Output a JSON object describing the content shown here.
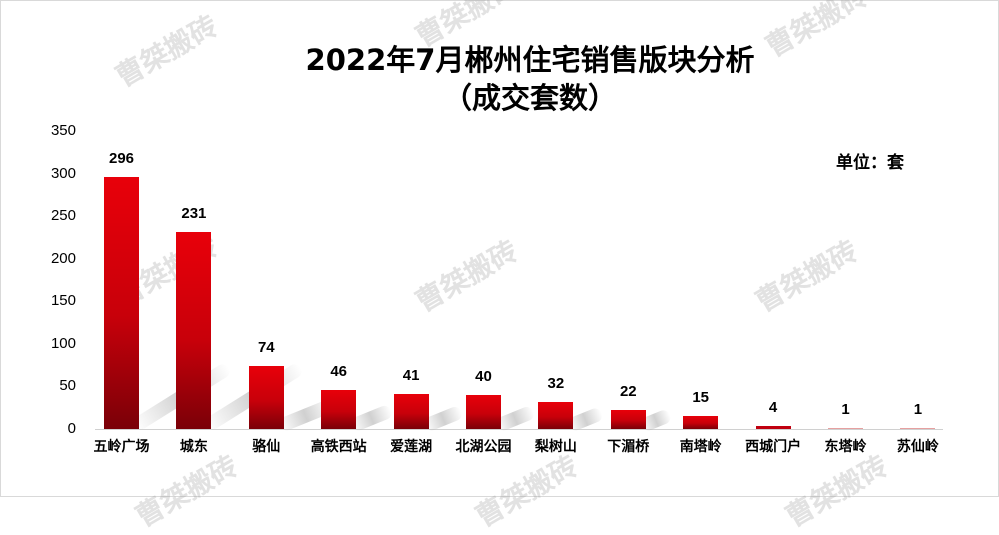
{
  "chart_data": {
    "type": "bar",
    "title": "2022年7月郴州住宅销售版块分析",
    "subtitle": "（成交套数）",
    "unit_label": "单位：套",
    "xlabel": "",
    "ylabel": "",
    "ylim": [
      0,
      350
    ],
    "yticks": [
      "0",
      "50",
      "100",
      "150",
      "200",
      "250",
      "300",
      "350"
    ],
    "grid": false,
    "legend": "none",
    "categories": [
      "五岭广场",
      "城东",
      "骆仙",
      "高铁西站",
      "爱莲湖",
      "北湖公园",
      "梨树山",
      "下湄桥",
      "南塔岭",
      "西城门户",
      "东塔岭",
      "苏仙岭"
    ],
    "values": [
      296,
      231,
      74,
      46,
      41,
      40,
      32,
      22,
      15,
      4,
      1,
      1
    ],
    "bar_color": "#d4000a"
  },
  "watermark": "曹桀搬砖"
}
